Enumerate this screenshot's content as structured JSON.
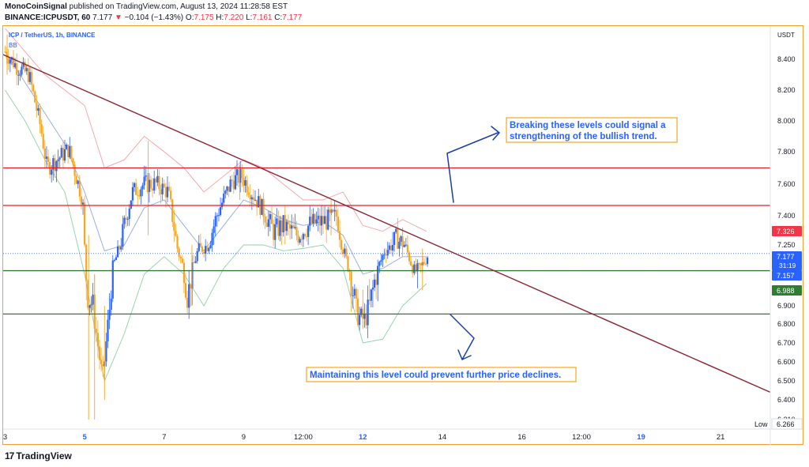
{
  "header": {
    "author": "MonoCoinSignal",
    "published_text": "published on TradingView.com, August 13, 2024 11:28:58 EST",
    "symbol": "BINANCE:ICPUSDT, 60",
    "last": "7.177",
    "change": "−0.104 (−1.43%)",
    "o_label": "O:",
    "o_value": "7.175",
    "h_label": "H:",
    "h_value": "7.220",
    "l_label": "L:",
    "l_value": "7.161",
    "c_label": "C:",
    "c_value": "7.177"
  },
  "legend": {
    "symbol_line": "ICP / TetherUS, 1h, BINANCE",
    "indicator": "BB"
  },
  "footer": {
    "logo_text": "TradingView"
  },
  "colors": {
    "up": "#2962ff",
    "down": "#f5a623",
    "resistance": "#e02020",
    "support": "#2e7d32",
    "trendline": "#8b2332",
    "bb_upper": "#f5a0a8",
    "bb_basis": "#8fa8e0",
    "bb_lower": "#8fd0a8",
    "annotation_text": "#2962ff",
    "annotation_border": "#f5a623",
    "arrow": "#1b3fa8"
  },
  "chart_data": {
    "type": "candlestick",
    "symbol": "ICP / TetherUS",
    "timeframe": "1h",
    "ylabel": "USDT",
    "ylim": [
      6.31,
      8.56
    ],
    "x_ticks": [
      {
        "label": "3",
        "day": 3,
        "bold": false
      },
      {
        "label": "5",
        "day": 5,
        "bold": true
      },
      {
        "label": "7",
        "day": 7,
        "bold": false
      },
      {
        "label": "9",
        "day": 9,
        "bold": false
      },
      {
        "label": "12:00",
        "day": 10.5,
        "bold": false
      },
      {
        "label": "12",
        "day": 12,
        "bold": true
      },
      {
        "label": "14",
        "day": 14,
        "bold": false
      },
      {
        "label": "16",
        "day": 16,
        "bold": false
      },
      {
        "label": "12:00",
        "day": 17.5,
        "bold": false
      },
      {
        "label": "19",
        "day": 19,
        "bold": true
      },
      {
        "label": "21",
        "day": 21,
        "bold": false
      }
    ],
    "xlim_days": [
      2.95,
      22.25
    ],
    "y_ticks": [
      "8.400",
      "8.200",
      "8.000",
      "7.800",
      "7.600",
      "7.400",
      "7.250",
      "7.000",
      "6.900",
      "6.800",
      "6.700",
      "6.600",
      "6.500",
      "6.400",
      "6.310"
    ],
    "price_labels": [
      {
        "value": 7.326,
        "text": "7.326",
        "color": "#f23645"
      },
      {
        "value": 7.177,
        "text": "7.177",
        "sub": "31:19",
        "color": "#2962ff"
      },
      {
        "value": 7.157,
        "text": "7.157",
        "color": "#2962ff"
      },
      {
        "value": 6.988,
        "text": "6.988",
        "color": "#2e7d32"
      }
    ],
    "low_label": {
      "label": "Low",
      "value": "6.266"
    },
    "horizontal_levels": [
      {
        "name": "resistance-upper",
        "value": 7.7,
        "color": "#e02020"
      },
      {
        "name": "resistance-lower",
        "value": 7.465,
        "color": "#e02020"
      },
      {
        "name": "support-upper",
        "value": 7.03,
        "color": "#2e7d32"
      },
      {
        "name": "support-lower",
        "value": 6.855,
        "color": "#2e7d32"
      }
    ],
    "trendline": {
      "start": {
        "day": 2.95,
        "price": 8.43
      },
      "end": {
        "day": 22.25,
        "price": 6.44
      }
    },
    "current_price_line": 7.177,
    "close_path": [
      [
        3.0,
        8.45
      ],
      [
        3.3,
        8.35
      ],
      [
        3.6,
        8.3
      ],
      [
        3.9,
        7.95
      ],
      [
        4.05,
        7.7
      ],
      [
        4.3,
        7.75
      ],
      [
        4.6,
        7.82
      ],
      [
        4.95,
        7.5
      ],
      [
        5.05,
        6.95
      ],
      [
        5.2,
        6.9
      ],
      [
        5.45,
        6.5
      ],
      [
        5.7,
        7.05
      ],
      [
        5.95,
        7.3
      ],
      [
        6.2,
        7.55
      ],
      [
        6.5,
        7.6
      ],
      [
        6.8,
        7.6
      ],
      [
        7.1,
        7.55
      ],
      [
        7.35,
        7.2
      ],
      [
        7.6,
        6.92
      ],
      [
        7.85,
        7.2
      ],
      [
        8.1,
        7.25
      ],
      [
        8.4,
        7.45
      ],
      [
        8.7,
        7.62
      ],
      [
        8.95,
        7.65
      ],
      [
        9.2,
        7.55
      ],
      [
        9.45,
        7.45
      ],
      [
        9.75,
        7.32
      ],
      [
        10.0,
        7.35
      ],
      [
        10.35,
        7.3
      ],
      [
        10.7,
        7.36
      ],
      [
        11.0,
        7.37
      ],
      [
        11.35,
        7.4
      ],
      [
        11.6,
        7.1
      ],
      [
        11.85,
        6.85
      ],
      [
        12.05,
        6.82
      ],
      [
        12.3,
        6.98
      ],
      [
        12.55,
        7.2
      ],
      [
        12.85,
        7.28
      ],
      [
        13.05,
        7.25
      ],
      [
        13.3,
        7.02
      ],
      [
        13.45,
        7.05
      ],
      [
        13.65,
        7.177
      ]
    ],
    "candles": [
      {
        "day": 3.05,
        "high": 8.56,
        "low": 8.3
      },
      {
        "day": 5.1,
        "high": 7.3,
        "low": 6.31
      },
      {
        "day": 5.25,
        "high": 7.0,
        "low": 6.31
      },
      {
        "day": 5.5,
        "high": 6.9,
        "low": 6.4
      },
      {
        "day": 6.6,
        "high": 7.87,
        "low": 7.3
      },
      {
        "day": 7.7,
        "high": 7.25,
        "low": 6.9
      },
      {
        "day": 8.9,
        "high": 7.72,
        "low": 7.5
      },
      {
        "day": 11.2,
        "high": 7.5,
        "low": 7.3
      },
      {
        "day": 12.0,
        "high": 6.95,
        "low": 6.78
      },
      {
        "day": 13.0,
        "high": 7.34,
        "low": 7.15
      },
      {
        "day": 13.5,
        "high": 7.22,
        "low": 6.95
      }
    ],
    "bollinger": {
      "upper": [
        [
          3.0,
          8.6
        ],
        [
          3.5,
          8.45
        ],
        [
          4.0,
          8.3
        ],
        [
          4.5,
          8.2
        ],
        [
          5.0,
          8.1
        ],
        [
          5.5,
          7.7
        ],
        [
          6.0,
          7.75
        ],
        [
          6.5,
          7.9
        ],
        [
          7.0,
          7.8
        ],
        [
          7.5,
          7.7
        ],
        [
          8.0,
          7.55
        ],
        [
          8.5,
          7.65
        ],
        [
          9.0,
          7.75
        ],
        [
          9.5,
          7.7
        ],
        [
          10.0,
          7.6
        ],
        [
          10.5,
          7.5
        ],
        [
          11.0,
          7.5
        ],
        [
          11.5,
          7.55
        ],
        [
          12.0,
          7.35
        ],
        [
          12.5,
          7.32
        ],
        [
          13.0,
          7.38
        ],
        [
          13.6,
          7.32
        ]
      ],
      "basis": [
        [
          3.0,
          8.45
        ],
        [
          3.5,
          8.25
        ],
        [
          4.0,
          8.05
        ],
        [
          4.5,
          7.85
        ],
        [
          5.0,
          7.55
        ],
        [
          5.5,
          7.2
        ],
        [
          6.0,
          7.25
        ],
        [
          6.5,
          7.45
        ],
        [
          7.0,
          7.5
        ],
        [
          7.5,
          7.35
        ],
        [
          8.0,
          7.2
        ],
        [
          8.5,
          7.35
        ],
        [
          9.0,
          7.5
        ],
        [
          9.5,
          7.45
        ],
        [
          10.0,
          7.38
        ],
        [
          10.5,
          7.35
        ],
        [
          11.0,
          7.37
        ],
        [
          11.5,
          7.3
        ],
        [
          12.0,
          7.0
        ],
        [
          12.5,
          7.05
        ],
        [
          13.0,
          7.15
        ],
        [
          13.6,
          7.15
        ]
      ],
      "lower": [
        [
          3.0,
          8.2
        ],
        [
          3.5,
          8.0
        ],
        [
          4.0,
          7.75
        ],
        [
          4.5,
          7.55
        ],
        [
          5.0,
          7.0
        ],
        [
          5.5,
          6.5
        ],
        [
          6.0,
          6.75
        ],
        [
          6.5,
          7.0
        ],
        [
          7.0,
          7.15
        ],
        [
          7.5,
          7.0
        ],
        [
          8.0,
          6.9
        ],
        [
          8.5,
          7.05
        ],
        [
          9.0,
          7.25
        ],
        [
          9.5,
          7.25
        ],
        [
          10.0,
          7.2
        ],
        [
          10.5,
          7.22
        ],
        [
          11.0,
          7.25
        ],
        [
          11.5,
          7.05
        ],
        [
          12.0,
          6.7
        ],
        [
          12.5,
          6.72
        ],
        [
          13.0,
          6.9
        ],
        [
          13.6,
          6.97
        ]
      ]
    },
    "annotations": [
      {
        "name": "bullish-note",
        "text_lines": [
          "Breaking these levels could signal a",
          "strengthening of the bullish trend."
        ]
      },
      {
        "name": "support-note",
        "text_lines": [
          "Maintaining this level could prevent further price declines."
        ]
      }
    ]
  }
}
